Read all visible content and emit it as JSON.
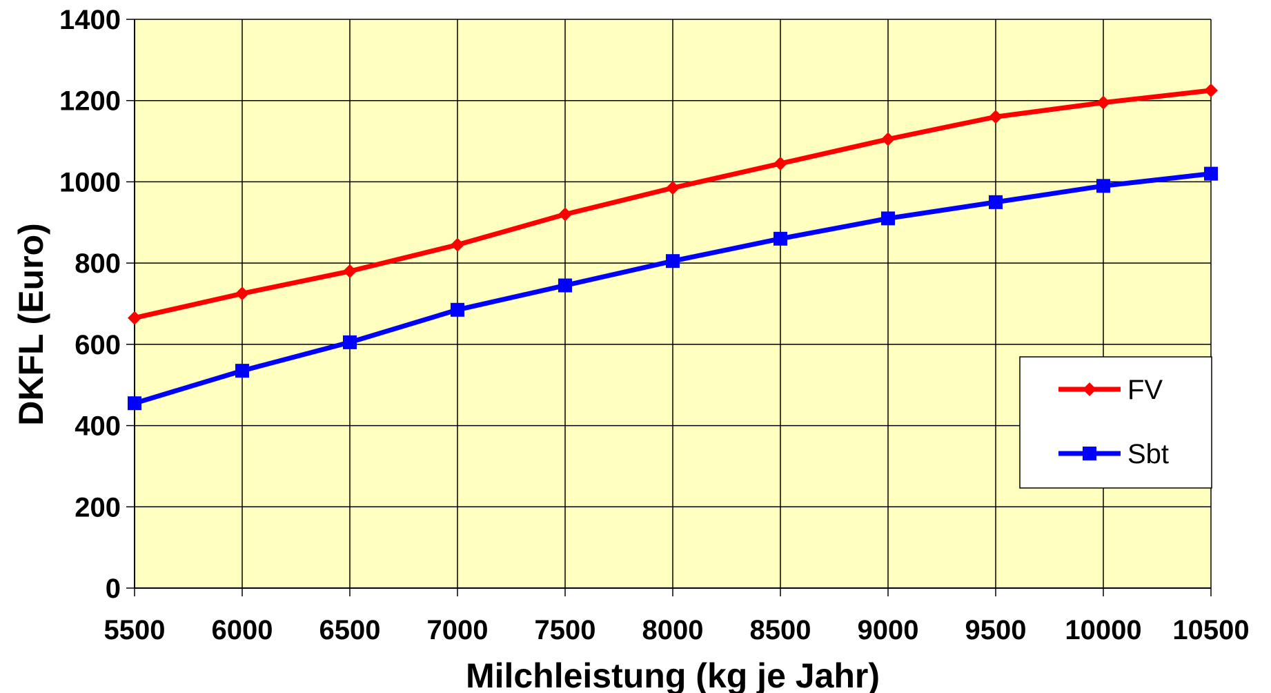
{
  "chart_data": {
    "type": "line",
    "title": "",
    "xlabel": "Milchleistung (kg je Jahr)",
    "ylabel": "DKFL (Euro)",
    "x": [
      5500,
      6000,
      6500,
      7000,
      7500,
      8000,
      8500,
      9000,
      9500,
      10000,
      10500
    ],
    "x_tick_labels": [
      "5500",
      "6000",
      "6500",
      "7000",
      "7500",
      "8000",
      "8500",
      "9000",
      "9500",
      "10000",
      "10500"
    ],
    "ylim": [
      0,
      1400
    ],
    "y_ticks": [
      0,
      200,
      400,
      600,
      800,
      1000,
      1200,
      1400
    ],
    "y_tick_labels": [
      "0",
      "200",
      "400",
      "600",
      "800",
      "1000",
      "1200",
      "1400"
    ],
    "grid": true,
    "plot_background": "#FFFFC0",
    "legend_position": "right",
    "series": [
      {
        "name": "FV",
        "color": "#FF0000",
        "marker": "diamond",
        "values": [
          665,
          725,
          780,
          845,
          920,
          985,
          1045,
          1105,
          1160,
          1195,
          1225
        ]
      },
      {
        "name": "Sbt",
        "color": "#0000FF",
        "marker": "square",
        "values": [
          455,
          535,
          605,
          685,
          745,
          805,
          860,
          910,
          950,
          990,
          1020
        ]
      }
    ]
  }
}
